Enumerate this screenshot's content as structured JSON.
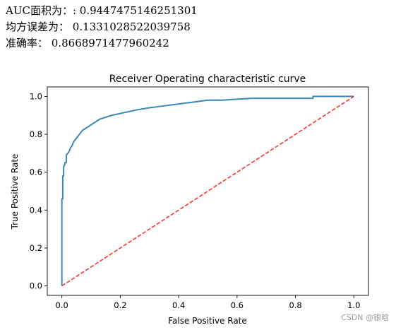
{
  "output": {
    "auc_label": "AUC面积为：",
    "auc_value": "0.9447475146251301",
    "mse_label": "均方误差为：",
    "mse_value": "0.1331028522039758",
    "acc_label": "准确率：",
    "acc_value": "0.8668971477960242"
  },
  "chart_data": {
    "type": "line",
    "title": "Receiver Operating characteristic curve",
    "xlabel": "False Positive Rate",
    "ylabel": "True Positive Rate",
    "xlim": [
      -0.05,
      1.05
    ],
    "ylim": [
      -0.05,
      1.05
    ],
    "xticks": [
      0.0,
      0.2,
      0.4,
      0.6,
      0.8,
      1.0
    ],
    "xtick_labels": [
      "0.0",
      "0.2",
      "0.4",
      "0.6",
      "0.8",
      "1.0"
    ],
    "yticks": [
      0.0,
      0.2,
      0.4,
      0.6,
      0.8,
      1.0
    ],
    "ytick_labels": [
      "0.0",
      "0.2",
      "0.4",
      "0.6",
      "0.8",
      "1.0"
    ],
    "grid": false,
    "series": [
      {
        "style": "solid",
        "color": "#3a87b8",
        "x": [
          0.0,
          0.0,
          0.003,
          0.003,
          0.006,
          0.006,
          0.01,
          0.01,
          0.015,
          0.015,
          0.02,
          0.025,
          0.03,
          0.035,
          0.04,
          0.05,
          0.055,
          0.06,
          0.07,
          0.08,
          0.09,
          0.1,
          0.11,
          0.12,
          0.13,
          0.15,
          0.17,
          0.2,
          0.23,
          0.26,
          0.3,
          0.35,
          0.4,
          0.45,
          0.5,
          0.55,
          0.6,
          0.65,
          0.7,
          0.75,
          0.8,
          0.86,
          0.86,
          0.9,
          0.95,
          1.0
        ],
        "y": [
          0.0,
          0.46,
          0.46,
          0.58,
          0.58,
          0.63,
          0.64,
          0.65,
          0.65,
          0.69,
          0.7,
          0.71,
          0.73,
          0.74,
          0.76,
          0.78,
          0.79,
          0.8,
          0.82,
          0.83,
          0.84,
          0.85,
          0.86,
          0.87,
          0.88,
          0.89,
          0.9,
          0.91,
          0.92,
          0.93,
          0.94,
          0.95,
          0.96,
          0.97,
          0.98,
          0.98,
          0.985,
          0.99,
          0.99,
          0.99,
          0.99,
          0.99,
          1.0,
          1.0,
          1.0,
          1.0
        ]
      },
      {
        "style": "dashed",
        "color": "#ff3030",
        "x": [
          0.0,
          1.0
        ],
        "y": [
          0.0,
          1.0
        ]
      }
    ]
  },
  "watermark": "CSDN @银晗"
}
